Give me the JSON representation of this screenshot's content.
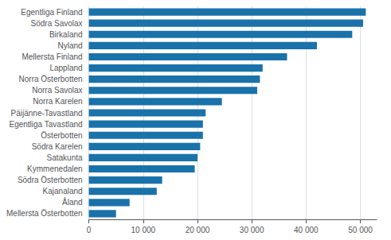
{
  "chart_data": {
    "type": "bar",
    "orientation": "horizontal",
    "categories": [
      "Mellersta Österbotten",
      "Åland",
      "Kajanaland",
      "Södra Österbotten",
      "Kymmenedalen",
      "Satakunta",
      "Södra Karelen",
      "Österbotten",
      "Egentliga Tavastland",
      "Päijänne-Tavastland",
      "Norra Karelen",
      "Norra Savolax",
      "Norra Österbotten",
      "Lappland",
      "Mellersta Finland",
      "Nyland",
      "Birkaland",
      "Södra Savolax",
      "Egentliga Finland"
    ],
    "values": [
      5000,
      7500,
      12500,
      13500,
      19500,
      20000,
      20500,
      21000,
      21000,
      21500,
      24500,
      31000,
      31500,
      32000,
      36500,
      42000,
      48500,
      50500,
      51000
    ],
    "color": "#1a72aa",
    "xlim": [
      0,
      53000
    ],
    "xticks": [
      0,
      {
        "value": 10000,
        "label": "10 000"
      },
      {
        "value": 20000,
        "label": "20 000"
      },
      {
        "value": 30000,
        "label": "30 000"
      },
      {
        "value": 40000,
        "label": "40 000"
      },
      {
        "value": 50000,
        "label": "50 000"
      }
    ],
    "grid": true
  }
}
